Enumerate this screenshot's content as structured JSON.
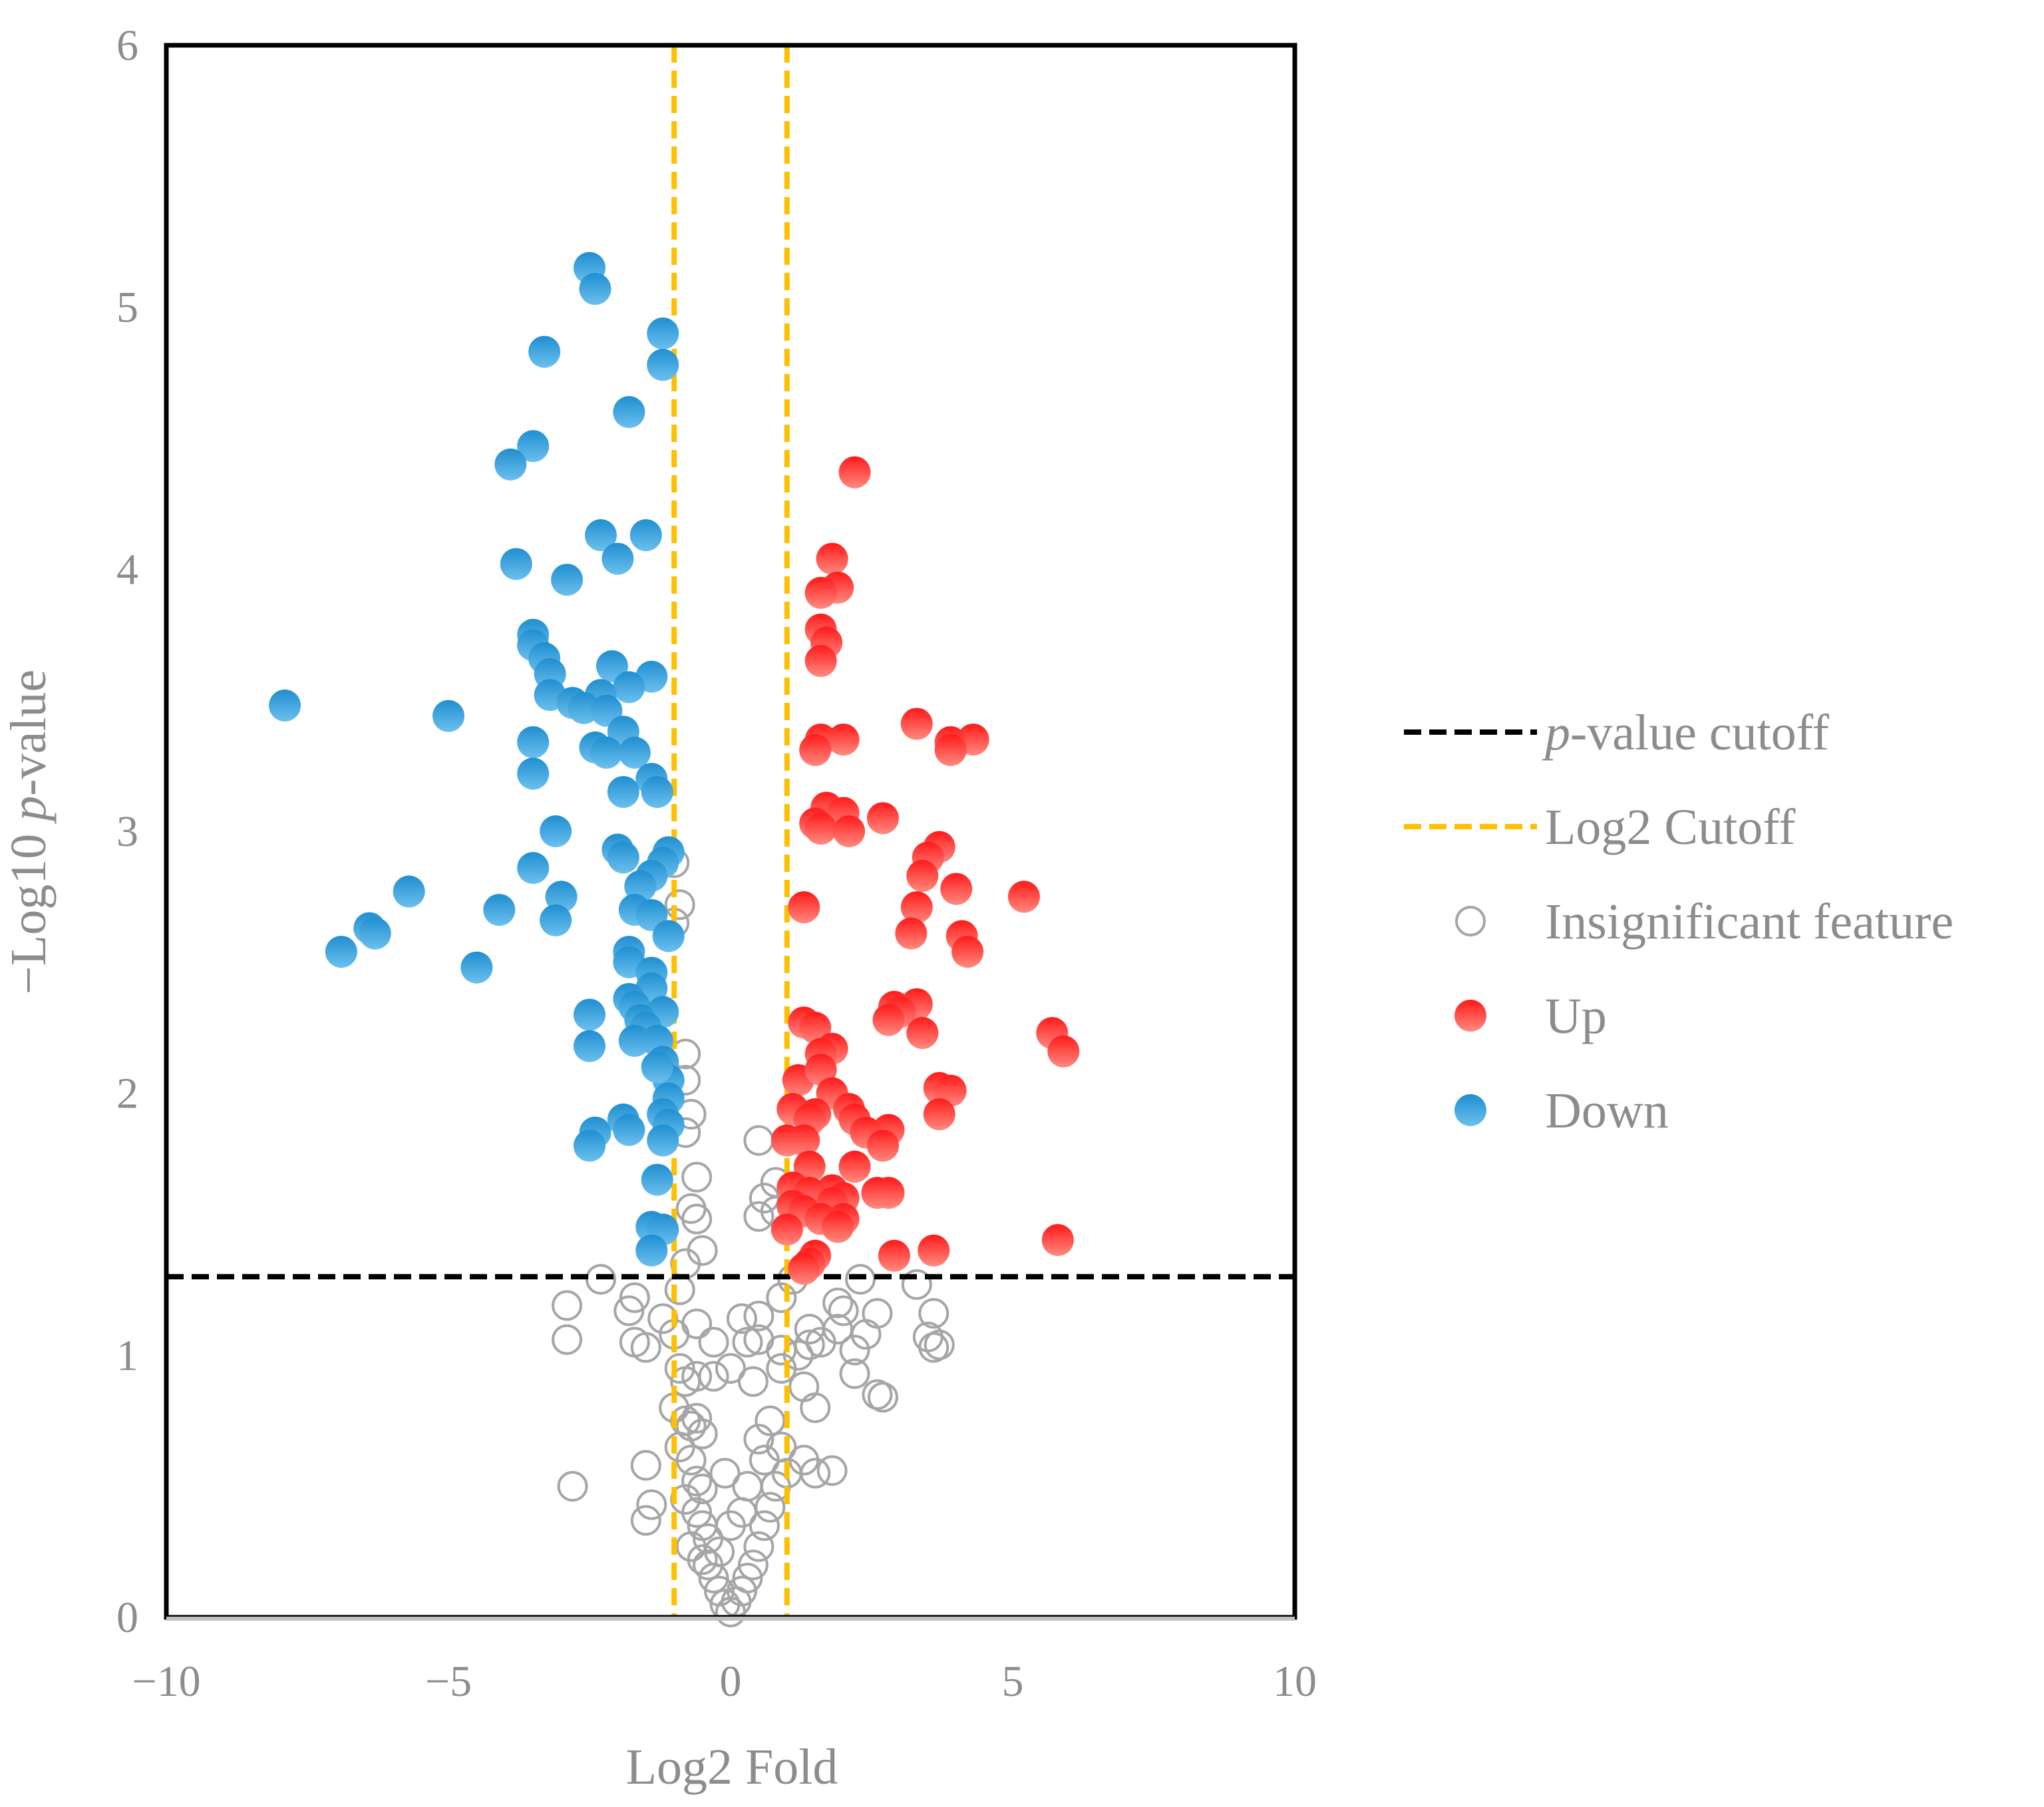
{
  "chart_data": {
    "type": "scatter",
    "title": "",
    "xlabel": "Log2 Fold",
    "ylabel_prefix": "−Log10 ",
    "ylabel_italic": "p",
    "ylabel_suffix": "-value",
    "xlim": [
      -10,
      10
    ],
    "ylim": [
      0,
      6
    ],
    "xticks": [
      -10,
      -5,
      0,
      5,
      10
    ],
    "xtick_labels": [
      "−10",
      "−5",
      "0",
      "5",
      "10"
    ],
    "yticks": [
      0,
      1,
      2,
      3,
      4,
      5,
      6
    ],
    "ytick_labels": [
      "0",
      "1",
      "2",
      "3",
      "4",
      "5",
      "6"
    ],
    "p_value_cutoff": 1.3,
    "log2_cutoffs": [
      -1,
      1
    ],
    "colors": {
      "pvalue_line": "#000000",
      "log2_line": "#ffc000",
      "insignificant": "#a6a6a6",
      "up": "#ff0000",
      "down": "#2e9bd6",
      "frame": "#000000"
    },
    "legend": {
      "position": "right",
      "entries": [
        {
          "key": "pvalue",
          "italic": "p",
          "rest": "-value cutoff"
        },
        {
          "key": "log2",
          "italic": "",
          "rest": "Log2 Cutoff"
        },
        {
          "key": "insignificant",
          "italic": "",
          "rest": "Insignificant feature"
        },
        {
          "key": "up",
          "italic": "",
          "rest": "Up"
        },
        {
          "key": "down",
          "italic": "",
          "rest": "Down"
        }
      ]
    },
    "series": [
      {
        "name": "Down",
        "points": [
          [
            -2.5,
            5.15
          ],
          [
            -2.4,
            5.07
          ],
          [
            -1.2,
            4.9
          ],
          [
            -3.3,
            4.83
          ],
          [
            -1.2,
            4.78
          ],
          [
            -1.8,
            4.6
          ],
          [
            -3.5,
            4.47
          ],
          [
            -3.9,
            4.4
          ],
          [
            -2.3,
            4.13
          ],
          [
            -1.5,
            4.13
          ],
          [
            -2.0,
            4.04
          ],
          [
            -3.8,
            4.02
          ],
          [
            -2.9,
            3.96
          ],
          [
            -3.5,
            3.75
          ],
          [
            -3.5,
            3.71
          ],
          [
            -3.3,
            3.66
          ],
          [
            -3.2,
            3.6
          ],
          [
            -2.1,
            3.63
          ],
          [
            -1.4,
            3.59
          ],
          [
            -1.8,
            3.55
          ],
          [
            -2.3,
            3.52
          ],
          [
            -3.2,
            3.52
          ],
          [
            -2.8,
            3.49
          ],
          [
            -2.6,
            3.47
          ],
          [
            -7.9,
            3.48
          ],
          [
            -5.0,
            3.44
          ],
          [
            -2.2,
            3.46
          ],
          [
            -1.9,
            3.38
          ],
          [
            -3.5,
            3.34
          ],
          [
            -2.4,
            3.32
          ],
          [
            -2.2,
            3.3
          ],
          [
            -1.7,
            3.3
          ],
          [
            -1.4,
            3.2
          ],
          [
            -3.5,
            3.22
          ],
          [
            -1.3,
            3.15
          ],
          [
            -1.9,
            3.15
          ],
          [
            -3.1,
            3.0
          ],
          [
            -1.1,
            2.92
          ],
          [
            -2.0,
            2.93
          ],
          [
            -1.2,
            2.88
          ],
          [
            -1.9,
            2.9
          ],
          [
            -3.5,
            2.86
          ],
          [
            -1.4,
            2.83
          ],
          [
            -1.6,
            2.79
          ],
          [
            -5.7,
            2.77
          ],
          [
            -3.0,
            2.75
          ],
          [
            -1.7,
            2.7
          ],
          [
            -4.1,
            2.7
          ],
          [
            -1.4,
            2.68
          ],
          [
            -3.1,
            2.66
          ],
          [
            -6.4,
            2.63
          ],
          [
            -6.3,
            2.61
          ],
          [
            -1.1,
            2.6
          ],
          [
            -6.9,
            2.54
          ],
          [
            -1.8,
            2.54
          ],
          [
            -1.8,
            2.5
          ],
          [
            -4.5,
            2.48
          ],
          [
            -1.4,
            2.46
          ],
          [
            -1.4,
            2.4
          ],
          [
            -1.8,
            2.36
          ],
          [
            -1.7,
            2.33
          ],
          [
            -1.2,
            2.31
          ],
          [
            -2.5,
            2.3
          ],
          [
            -1.6,
            2.28
          ],
          [
            -1.5,
            2.25
          ],
          [
            -2.5,
            2.18
          ],
          [
            -1.7,
            2.2
          ],
          [
            -1.3,
            2.2
          ],
          [
            -1.2,
            2.12
          ],
          [
            -1.1,
            2.05
          ],
          [
            -1.3,
            2.1
          ],
          [
            -1.1,
            1.98
          ],
          [
            -1.2,
            1.92
          ],
          [
            -1.9,
            1.9
          ],
          [
            -2.4,
            1.85
          ],
          [
            -1.8,
            1.86
          ],
          [
            -1.1,
            1.88
          ],
          [
            -1.2,
            1.82
          ],
          [
            -2.5,
            1.8
          ],
          [
            -1.3,
            1.67
          ],
          [
            -1.4,
            1.49
          ],
          [
            -1.2,
            1.48
          ],
          [
            -1.4,
            1.4
          ]
        ]
      },
      {
        "name": "Up",
        "points": [
          [
            2.2,
            4.37
          ],
          [
            1.8,
            4.04
          ],
          [
            1.9,
            3.93
          ],
          [
            1.6,
            3.91
          ],
          [
            1.6,
            3.77
          ],
          [
            1.7,
            3.72
          ],
          [
            1.6,
            3.65
          ],
          [
            3.3,
            3.41
          ],
          [
            4.3,
            3.35
          ],
          [
            3.9,
            3.34
          ],
          [
            3.9,
            3.31
          ],
          [
            2.0,
            3.35
          ],
          [
            1.6,
            3.35
          ],
          [
            1.5,
            3.31
          ],
          [
            1.7,
            3.09
          ],
          [
            2.0,
            3.07
          ],
          [
            2.7,
            3.05
          ],
          [
            1.5,
            3.03
          ],
          [
            1.6,
            3.01
          ],
          [
            2.1,
            3.0
          ],
          [
            3.7,
            2.94
          ],
          [
            3.5,
            2.9
          ],
          [
            3.4,
            2.83
          ],
          [
            4.0,
            2.78
          ],
          [
            5.2,
            2.75
          ],
          [
            3.3,
            2.71
          ],
          [
            1.3,
            2.71
          ],
          [
            3.2,
            2.61
          ],
          [
            4.1,
            2.6
          ],
          [
            4.2,
            2.54
          ],
          [
            2.9,
            2.33
          ],
          [
            3.3,
            2.34
          ],
          [
            3.0,
            2.31
          ],
          [
            2.8,
            2.28
          ],
          [
            3.4,
            2.23
          ],
          [
            1.3,
            2.27
          ],
          [
            1.5,
            2.25
          ],
          [
            5.7,
            2.23
          ],
          [
            5.9,
            2.16
          ],
          [
            1.8,
            2.17
          ],
          [
            1.6,
            2.15
          ],
          [
            1.2,
            2.05
          ],
          [
            1.6,
            2.09
          ],
          [
            1.8,
            2.0
          ],
          [
            3.7,
            2.02
          ],
          [
            3.9,
            2.01
          ],
          [
            2.1,
            1.94
          ],
          [
            3.7,
            1.92
          ],
          [
            1.1,
            1.94
          ],
          [
            1.5,
            1.92
          ],
          [
            2.2,
            1.9
          ],
          [
            1.4,
            1.9
          ],
          [
            2.8,
            1.86
          ],
          [
            2.4,
            1.85
          ],
          [
            1.0,
            1.82
          ],
          [
            1.3,
            1.82
          ],
          [
            2.7,
            1.8
          ],
          [
            1.4,
            1.72
          ],
          [
            2.2,
            1.72
          ],
          [
            1.1,
            1.64
          ],
          [
            1.8,
            1.63
          ],
          [
            2.6,
            1.62
          ],
          [
            2.8,
            1.62
          ],
          [
            1.4,
            1.62
          ],
          [
            2.0,
            1.6
          ],
          [
            1.8,
            1.58
          ],
          [
            1.1,
            1.57
          ],
          [
            1.3,
            1.55
          ],
          [
            2.0,
            1.52
          ],
          [
            1.6,
            1.52
          ],
          [
            1.9,
            1.49
          ],
          [
            1.0,
            1.48
          ],
          [
            5.8,
            1.44
          ],
          [
            3.6,
            1.4
          ],
          [
            2.9,
            1.38
          ],
          [
            1.5,
            1.38
          ],
          [
            1.4,
            1.35
          ],
          [
            1.3,
            1.33
          ]
        ]
      },
      {
        "name": "Insignificant feature",
        "points": [
          [
            -2.8,
            0.5
          ],
          [
            -1.5,
            0.58
          ],
          [
            -1.5,
            0.37
          ],
          [
            -1.4,
            0.43
          ],
          [
            -2.9,
            1.19
          ],
          [
            -2.9,
            1.06
          ],
          [
            -2.3,
            1.29
          ],
          [
            -1.8,
            1.17
          ],
          [
            -1.7,
            1.22
          ],
          [
            -1.7,
            1.05
          ],
          [
            -1.5,
            1.03
          ],
          [
            -1.2,
            1.14
          ],
          [
            -1.0,
            1.08
          ],
          [
            -0.9,
            0.95
          ],
          [
            -0.8,
            0.9
          ],
          [
            -0.6,
            0.92
          ],
          [
            -1.0,
            0.8
          ],
          [
            -0.8,
            0.75
          ],
          [
            -0.7,
            0.73
          ],
          [
            -0.6,
            0.76
          ],
          [
            -0.5,
            0.7
          ],
          [
            -0.9,
            0.65
          ],
          [
            -0.7,
            0.6
          ],
          [
            -0.6,
            0.52
          ],
          [
            -0.5,
            0.49
          ],
          [
            -0.8,
            0.45
          ],
          [
            -0.6,
            0.4
          ],
          [
            -0.5,
            0.35
          ],
          [
            -0.4,
            0.3
          ],
          [
            -0.7,
            0.27
          ],
          [
            -0.5,
            0.22
          ],
          [
            -0.4,
            0.2
          ],
          [
            -0.3,
            0.15
          ],
          [
            -0.2,
            0.1
          ],
          [
            -0.1,
            0.05
          ],
          [
            0.0,
            0.02
          ],
          [
            0.1,
            0.06
          ],
          [
            0.2,
            0.1
          ],
          [
            0.3,
            0.15
          ],
          [
            0.4,
            0.2
          ],
          [
            0.5,
            0.27
          ],
          [
            0.6,
            0.35
          ],
          [
            0.7,
            0.42
          ],
          [
            0.8,
            0.5
          ],
          [
            0.6,
            0.6
          ],
          [
            0.5,
            0.68
          ],
          [
            0.7,
            0.75
          ],
          [
            0.9,
            0.65
          ],
          [
            1.0,
            0.55
          ],
          [
            1.3,
            0.6
          ],
          [
            1.5,
            0.55
          ],
          [
            1.8,
            0.56
          ],
          [
            0.9,
            0.95
          ],
          [
            0.4,
            0.9
          ],
          [
            0.0,
            0.95
          ],
          [
            -0.3,
            0.92
          ],
          [
            1.5,
            0.8
          ],
          [
            1.3,
            0.88
          ],
          [
            2.2,
            0.93
          ],
          [
            2.6,
            0.85
          ],
          [
            2.7,
            0.84
          ],
          [
            3.6,
            1.03
          ],
          [
            3.7,
            1.04
          ],
          [
            3.5,
            1.07
          ],
          [
            3.6,
            1.16
          ],
          [
            3.3,
            1.27
          ],
          [
            2.3,
            1.29
          ],
          [
            2.6,
            1.16
          ],
          [
            2.0,
            1.17
          ],
          [
            1.9,
            1.2
          ],
          [
            2.4,
            1.08
          ],
          [
            2.2,
            1.02
          ],
          [
            1.9,
            1.1
          ],
          [
            1.6,
            1.05
          ],
          [
            1.4,
            1.04
          ],
          [
            1.4,
            1.1
          ],
          [
            1.2,
            1.0
          ],
          [
            0.9,
            1.02
          ],
          [
            0.5,
            1.06
          ],
          [
            0.3,
            1.05
          ],
          [
            0.2,
            1.14
          ],
          [
            0.5,
            1.15
          ],
          [
            0.9,
            1.22
          ],
          [
            1.1,
            1.29
          ],
          [
            0.8,
            1.55
          ],
          [
            0.5,
            1.53
          ],
          [
            0.6,
            1.6
          ],
          [
            0.8,
            1.66
          ],
          [
            0.5,
            1.82
          ],
          [
            -0.8,
            1.35
          ],
          [
            -0.5,
            1.4
          ],
          [
            -0.6,
            1.52
          ],
          [
            -0.7,
            1.56
          ],
          [
            -0.6,
            1.68
          ],
          [
            -0.8,
            1.85
          ],
          [
            -0.7,
            1.92
          ],
          [
            -0.8,
            2.05
          ],
          [
            -0.8,
            2.15
          ],
          [
            -1.0,
            2.65
          ],
          [
            -0.9,
            2.72
          ],
          [
            -1.0,
            2.88
          ],
          [
            -0.6,
            1.12
          ],
          [
            -0.3,
            1.05
          ],
          [
            -0.9,
            1.25
          ],
          [
            -0.2,
            0.25
          ],
          [
            0.0,
            0.35
          ],
          [
            0.2,
            0.4
          ],
          [
            -0.1,
            0.55
          ],
          [
            0.3,
            0.5
          ]
        ]
      }
    ]
  }
}
